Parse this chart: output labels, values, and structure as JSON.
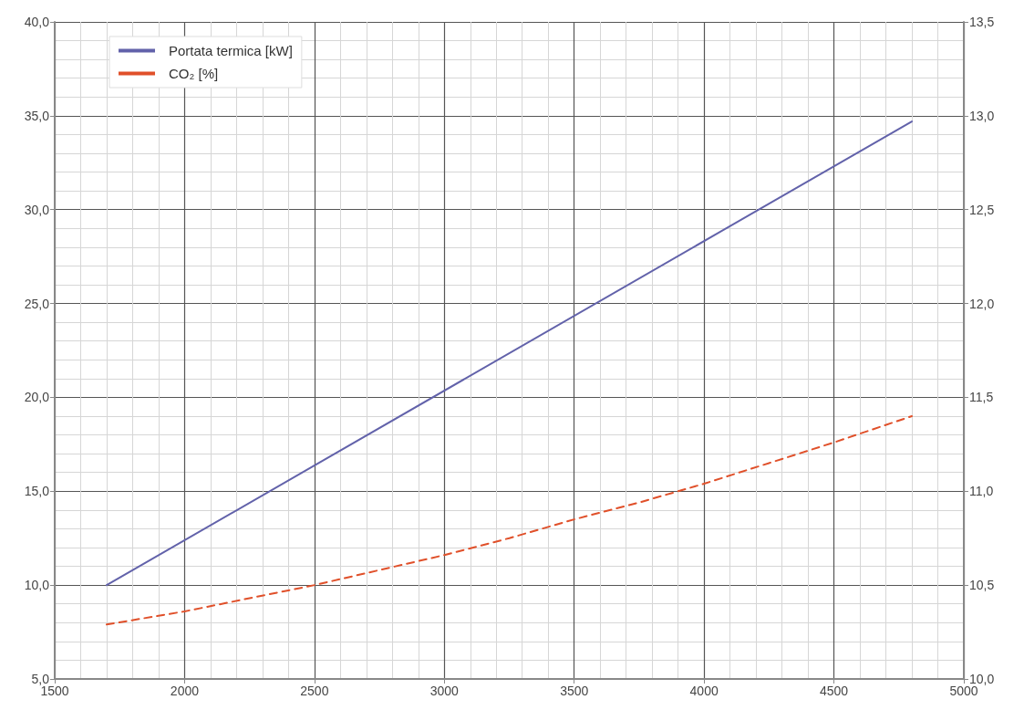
{
  "chart_data": {
    "type": "line",
    "x": [
      1700,
      2000,
      2250,
      2500,
      2750,
      3000,
      3250,
      3500,
      3750,
      4000,
      4250,
      4500,
      4800
    ],
    "series": [
      {
        "name": "Portata termica [kW]",
        "color": "#6262aa",
        "line_style": "solid",
        "x": [
          1700,
          4800
        ],
        "values": [
          10.0,
          34.7
        ]
      },
      {
        "name": "CO₂ [%]",
        "color": "#e0502a",
        "line_style": "dashed",
        "axis": "y2",
        "values": [
          10.29,
          10.36,
          10.43,
          10.5,
          10.58,
          10.66,
          10.75,
          10.85,
          10.94,
          11.04,
          11.15,
          11.26,
          11.4
        ]
      }
    ],
    "xlim": [
      1500,
      5000
    ],
    "xticks": [
      1500,
      2000,
      2500,
      3000,
      3500,
      4000,
      4500,
      5000
    ],
    "ylim": [
      5,
      40
    ],
    "yticks": [
      {
        "value": 5,
        "label": "5,0"
      },
      {
        "value": 10,
        "label": "10,0"
      },
      {
        "value": 15,
        "label": "15,0"
      },
      {
        "value": 20,
        "label": "20,0"
      },
      {
        "value": 25,
        "label": "25,0"
      },
      {
        "value": 30,
        "label": "30,0"
      },
      {
        "value": 35,
        "label": "35,0"
      },
      {
        "value": 40,
        "label": "40,0"
      }
    ],
    "y2lim": [
      10,
      13.5
    ],
    "y2ticks": [
      {
        "value": 10,
        "label": "10,0"
      },
      {
        "value": 10.5,
        "label": "10,5"
      },
      {
        "value": 11,
        "label": "11,0"
      },
      {
        "value": 11.5,
        "label": "11,5"
      },
      {
        "value": 12,
        "label": "12,0"
      },
      {
        "value": 12.5,
        "label": "12,5"
      },
      {
        "value": 13,
        "label": "13,0"
      },
      {
        "value": 13.5,
        "label": "13,5"
      }
    ],
    "grid": true,
    "legend": "top left",
    "marker": "none"
  }
}
